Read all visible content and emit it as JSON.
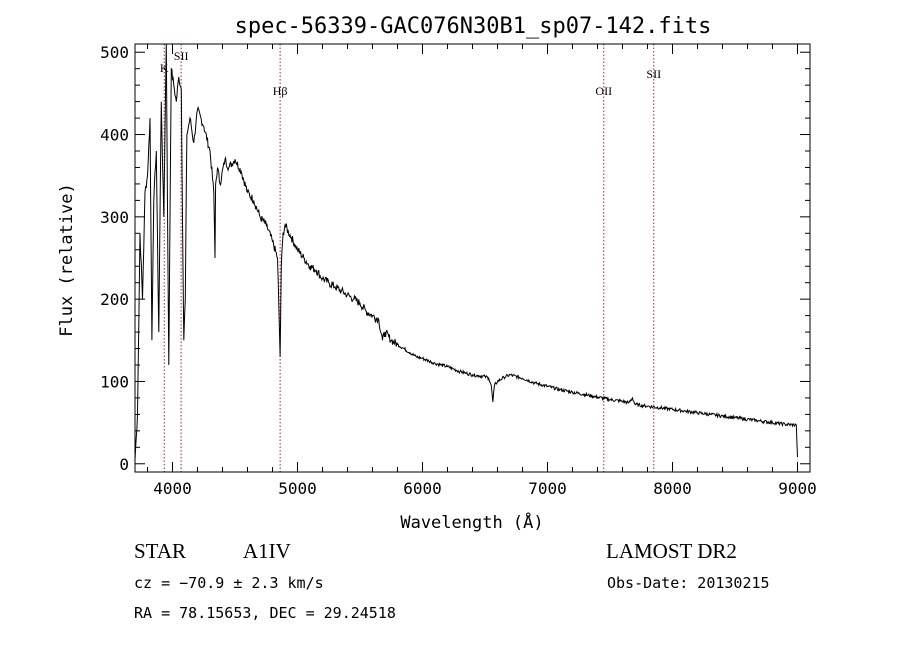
{
  "chart_data": {
    "type": "line",
    "title": "spec-56339-GAC076N30B1_sp07-142.fits",
    "xlabel": "Wavelength (Å)",
    "ylabel": "Flux (relative)",
    "xlim": [
      3700,
      9100
    ],
    "ylim": [
      -10,
      510
    ],
    "xticks": [
      4000,
      5000,
      6000,
      7000,
      8000,
      9000
    ],
    "yticks": [
      0,
      100,
      200,
      300,
      400,
      500
    ],
    "grid": false,
    "series": [
      {
        "x": [
          3700,
          3720,
          3740,
          3760,
          3780,
          3800,
          3820,
          3835,
          3850,
          3870,
          3890,
          3910,
          3930,
          3950,
          3970,
          3990,
          4010,
          4030,
          4050,
          4070,
          4090,
          4102,
          4115,
          4140,
          4170,
          4200,
          4250,
          4300,
          4330,
          4340,
          4345,
          4360,
          4380,
          4420,
          4450,
          4500,
          4550,
          4600,
          4650,
          4700,
          4750,
          4800,
          4840,
          4861,
          4870,
          4885,
          4900,
          4950,
          5000,
          5050,
          5100,
          5150,
          5200,
          5250,
          5300,
          5350,
          5400,
          5450,
          5500,
          5550,
          5600,
          5650,
          5680,
          5700,
          5750,
          5800,
          5850,
          5900,
          5950,
          6000,
          6050,
          6100,
          6150,
          6200,
          6250,
          6300,
          6350,
          6400,
          6450,
          6500,
          6530,
          6550,
          6563,
          6575,
          6600,
          6650,
          6700,
          6800,
          6900,
          7000,
          7100,
          7200,
          7300,
          7400,
          7500,
          7600,
          7650,
          7680,
          7700,
          7800,
          7900,
          8000,
          8100,
          8200,
          8300,
          8400,
          8500,
          8600,
          8700,
          8800,
          8900,
          8990,
          9000
        ],
        "y": [
          5,
          60,
          280,
          200,
          330,
          350,
          420,
          150,
          320,
          380,
          160,
          440,
          300,
          510,
          120,
          480,
          460,
          440,
          470,
          455,
          150,
          200,
          400,
          420,
          390,
          430,
          410,
          380,
          330,
          250,
          340,
          360,
          340,
          370,
          360,
          370,
          355,
          330,
          320,
          300,
          290,
          270,
          250,
          130,
          240,
          280,
          290,
          275,
          260,
          250,
          240,
          235,
          225,
          220,
          215,
          210,
          205,
          200,
          195,
          185,
          180,
          175,
          150,
          160,
          150,
          145,
          140,
          135,
          130,
          128,
          125,
          122,
          120,
          118,
          115,
          112,
          110,
          108,
          107,
          106,
          104,
          95,
          75,
          95,
          100,
          105,
          108,
          104,
          98,
          94,
          90,
          87,
          84,
          81,
          78,
          76,
          74,
          80,
          72,
          70,
          68,
          66,
          64,
          62,
          60,
          58,
          56,
          54,
          52,
          50,
          48,
          47,
          8
        ]
      }
    ],
    "line_markers": [
      {
        "label": "K",
        "x": 3934
      },
      {
        "label": "SII",
        "x": 4069
      },
      {
        "label": "Hβ",
        "x": 4861
      },
      {
        "label": "OII",
        "x": 7450
      },
      {
        "label": "SII",
        "x": 7850
      }
    ],
    "colors": {
      "spectrum": "#000000",
      "marker": "#b22222",
      "axes": "#000000"
    }
  },
  "info": {
    "object_class": "STAR",
    "subclass": "A1IV",
    "survey": "LAMOST DR2",
    "cz": "cz = −70.9 ± 2.3 km/s",
    "obs_date": "Obs-Date: 20130215",
    "coords": "RA =  78.15653, DEC =  29.24518"
  }
}
